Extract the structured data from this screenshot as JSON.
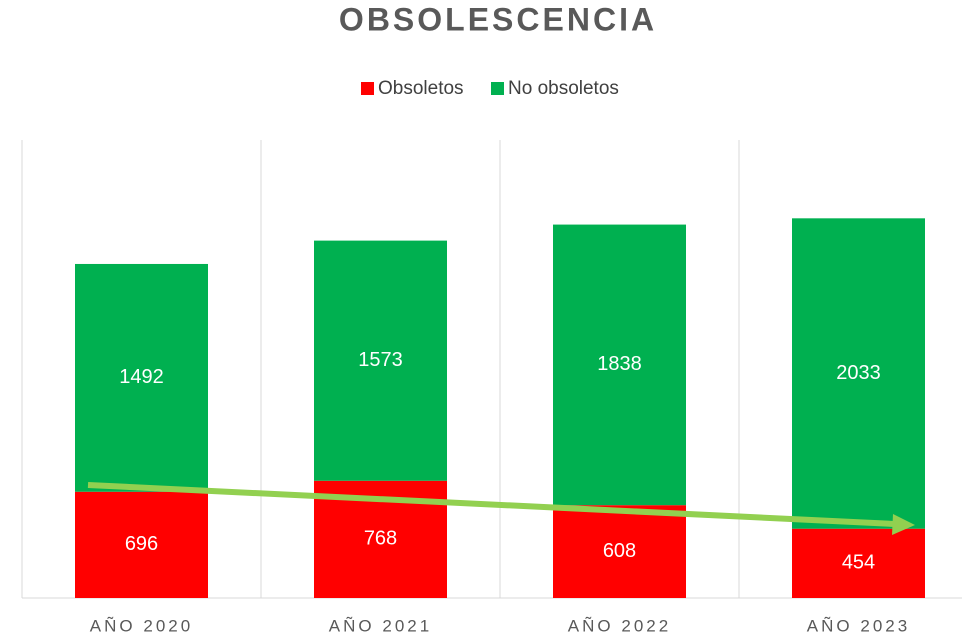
{
  "chart_data": {
    "type": "stacked_bar",
    "title": "OBSOLESCENCIA",
    "categories": [
      "AÑO 2020",
      "AÑO 2021",
      "AÑO 2022",
      "AÑO 2023"
    ],
    "series": [
      {
        "name": "Obsoletos",
        "color": "#ff0000",
        "values": [
          696,
          768,
          608,
          454
        ]
      },
      {
        "name": "No obsoletos",
        "color": "#00b050",
        "values": [
          1492,
          1573,
          1838,
          2033
        ]
      }
    ],
    "ylim": [
      0,
      3000
    ],
    "legend": "top"
  }
}
